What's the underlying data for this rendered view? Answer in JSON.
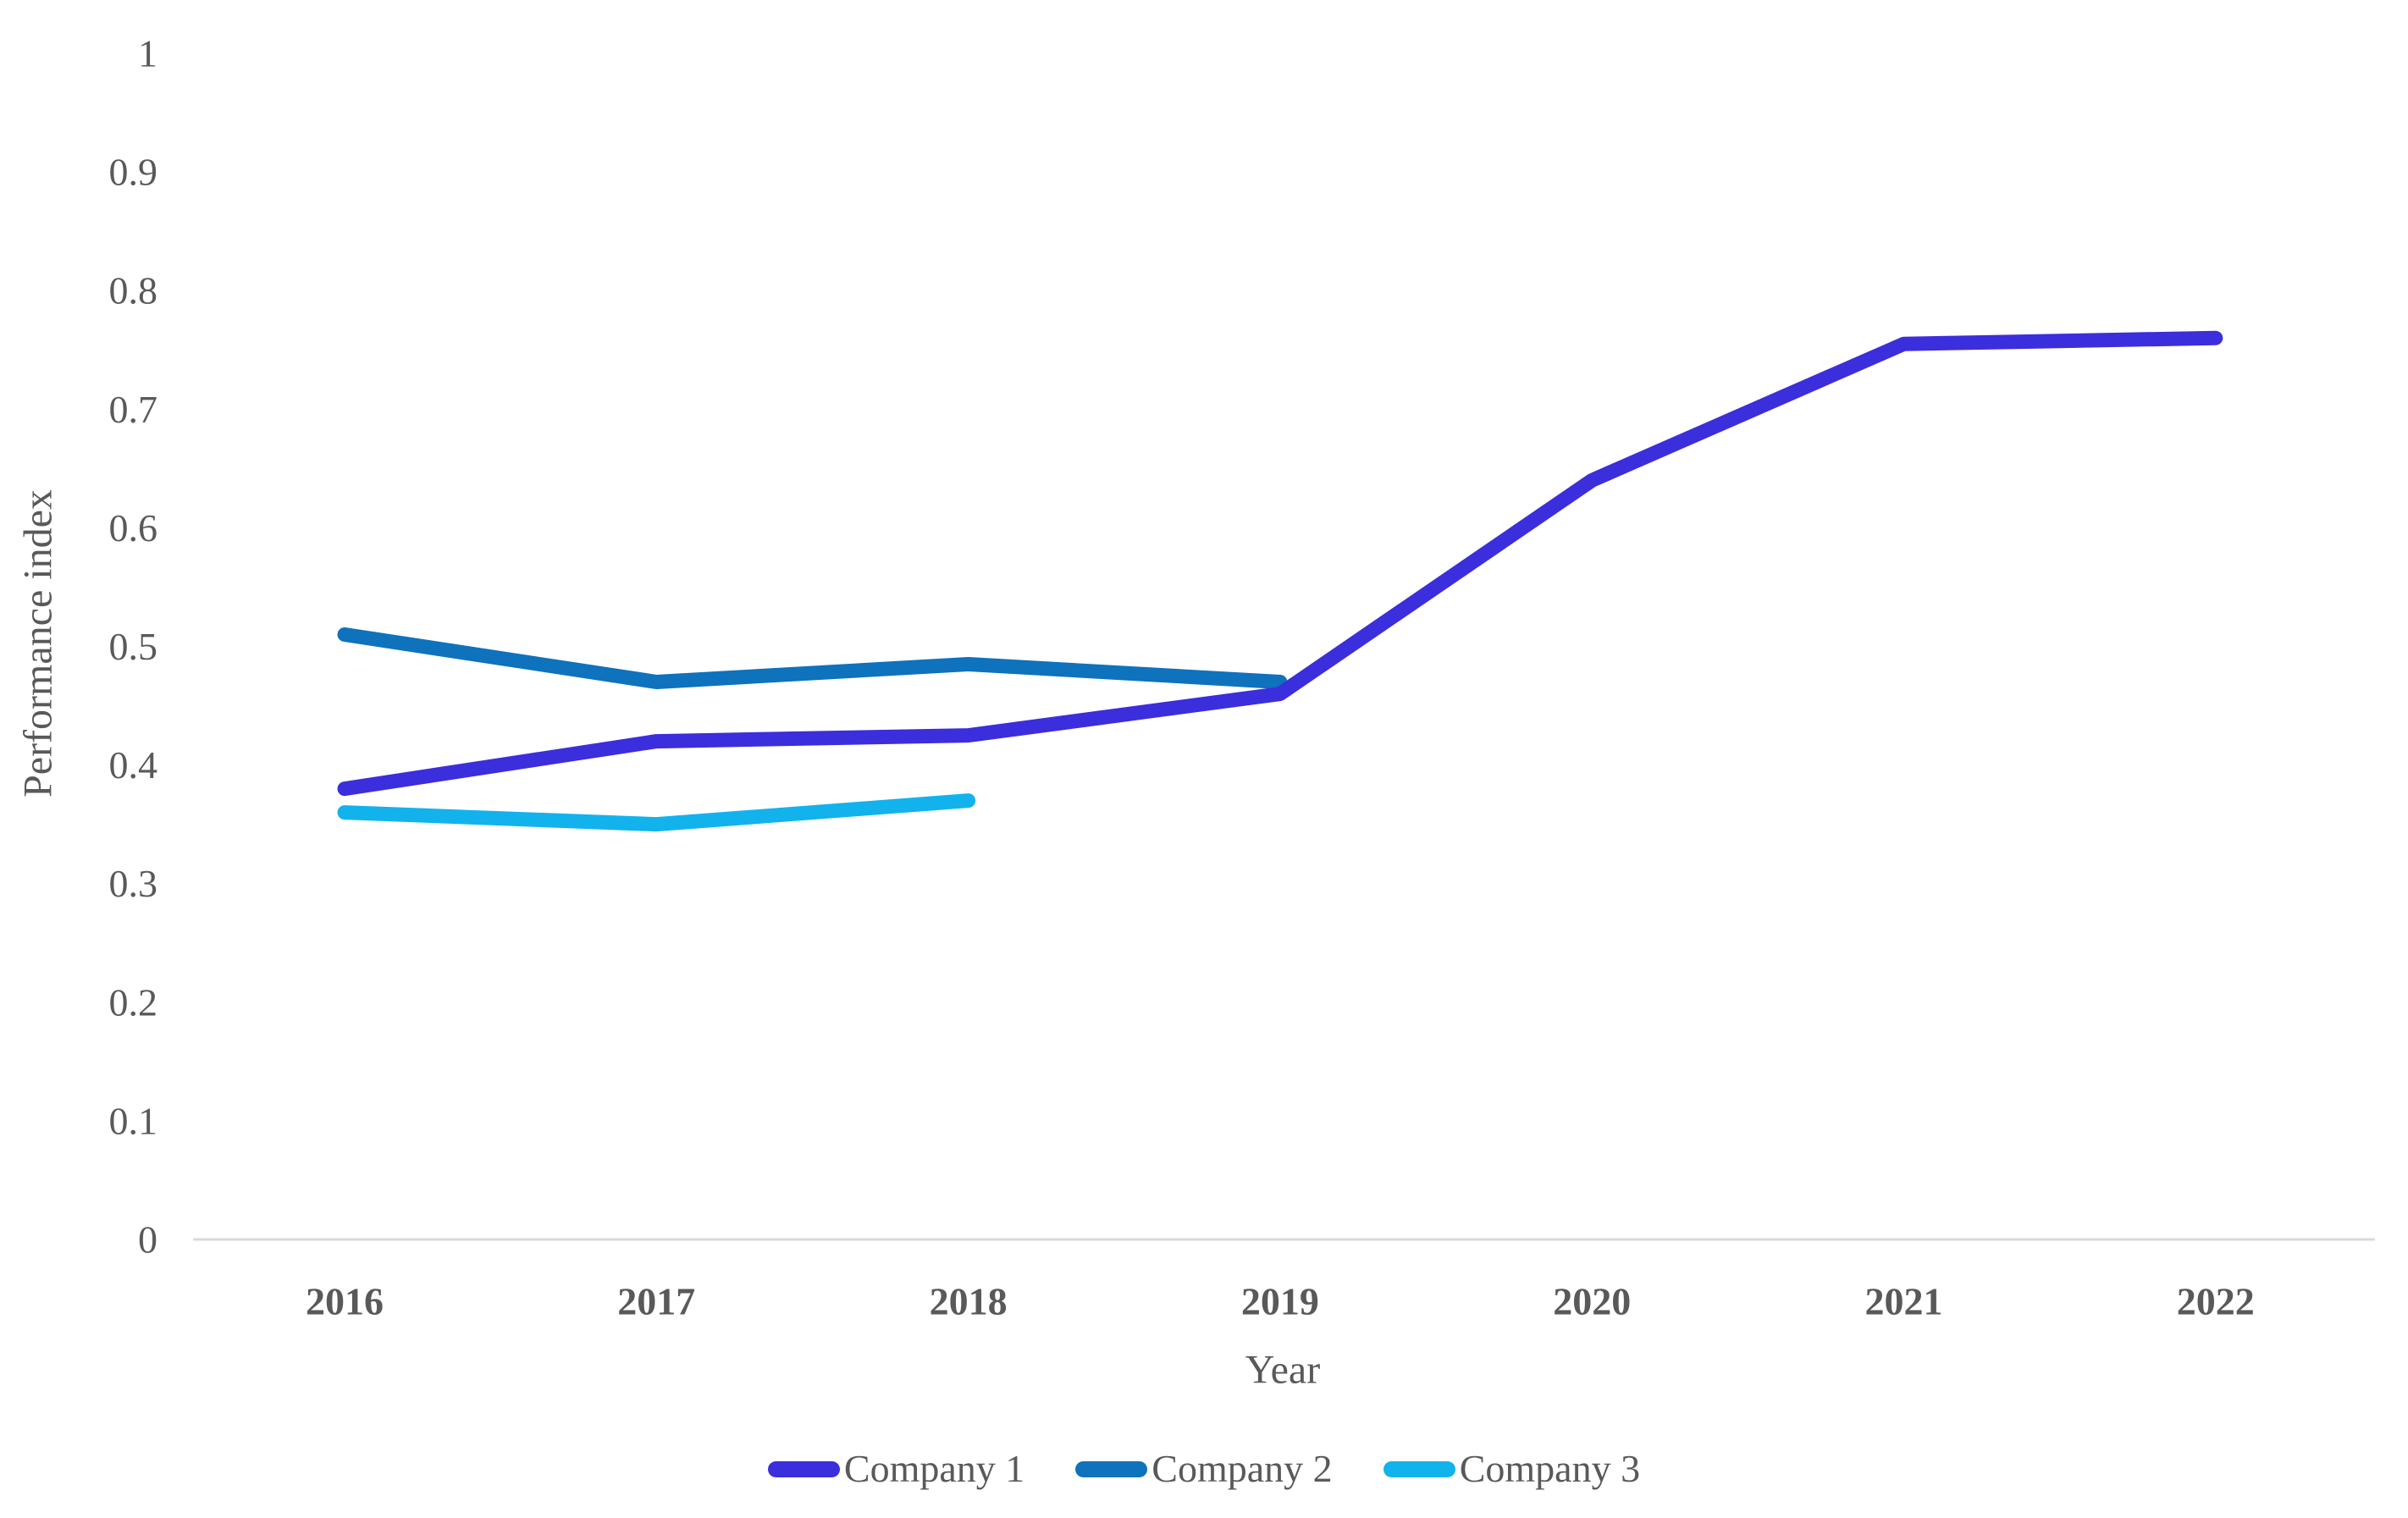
{
  "colors": {
    "axis_text": "#595959",
    "axis_line": "#d9d9d9",
    "background": "#ffffff",
    "series1": "#3b2edc",
    "series2": "#0e72bd",
    "series3": "#12b3ec"
  },
  "chart_data": {
    "type": "line",
    "title": "",
    "xlabel": "Year",
    "ylabel": "Performance index",
    "categories": [
      "2016",
      "2017",
      "2018",
      "2019",
      "2020",
      "2021",
      "2022"
    ],
    "y_ticks": [
      "0",
      "0.1",
      "0.2",
      "0.3",
      "0.4",
      "0.5",
      "0.6",
      "0.7",
      "0.8",
      "0.9",
      "1"
    ],
    "ylim": [
      0,
      1
    ],
    "grid": false,
    "legend_position": "bottom",
    "series": [
      {
        "name": "Company 1",
        "color": "#3b2edc",
        "values": [
          0.38,
          0.42,
          0.425,
          0.46,
          0.64,
          0.755,
          0.76
        ]
      },
      {
        "name": "Company 2",
        "color": "#0e72bd",
        "values": [
          0.51,
          0.47,
          0.485,
          0.47,
          null,
          null,
          null
        ]
      },
      {
        "name": "Company 3",
        "color": "#12b3ec",
        "values": [
          0.36,
          0.35,
          0.37,
          null,
          null,
          null,
          null
        ]
      }
    ]
  }
}
